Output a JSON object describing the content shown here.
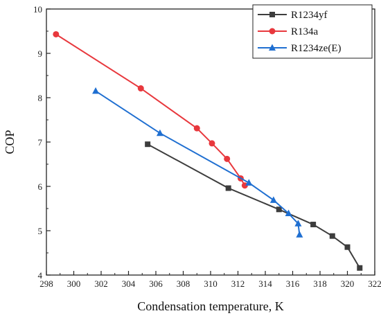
{
  "chart_data": {
    "type": "line",
    "xlabel": "Condensation temperature, K",
    "ylabel": "COP",
    "xlim": [
      298,
      322
    ],
    "ylim": [
      4,
      10
    ],
    "xticks": [
      298,
      300,
      302,
      304,
      306,
      308,
      310,
      312,
      314,
      316,
      318,
      320,
      322
    ],
    "yticks": [
      4,
      5,
      6,
      7,
      8,
      9,
      10
    ],
    "grid": false,
    "legend_position": "top-right",
    "series": [
      {
        "name": "R1234yf",
        "color": "#3d3d3d",
        "marker": "square",
        "points": [
          [
            305.4,
            6.95
          ],
          [
            311.3,
            5.96
          ],
          [
            315.0,
            5.48
          ],
          [
            317.5,
            5.14
          ],
          [
            318.9,
            4.88
          ],
          [
            320.0,
            4.63
          ],
          [
            320.9,
            4.16
          ]
        ]
      },
      {
        "name": "R134a",
        "color": "#e8383d",
        "marker": "circle",
        "points": [
          [
            298.7,
            9.43
          ],
          [
            304.9,
            8.21
          ],
          [
            309.0,
            7.31
          ],
          [
            310.1,
            6.97
          ],
          [
            311.2,
            6.62
          ],
          [
            312.2,
            6.18
          ],
          [
            312.5,
            6.02
          ]
        ]
      },
      {
        "name": "R1234ze(E)",
        "color": "#1f6fd1",
        "marker": "triangle",
        "points": [
          [
            301.6,
            8.15
          ],
          [
            306.3,
            7.2
          ],
          [
            312.8,
            6.08
          ],
          [
            314.6,
            5.69
          ],
          [
            315.7,
            5.39
          ],
          [
            316.4,
            5.16
          ],
          [
            316.5,
            4.91
          ]
        ]
      }
    ]
  }
}
